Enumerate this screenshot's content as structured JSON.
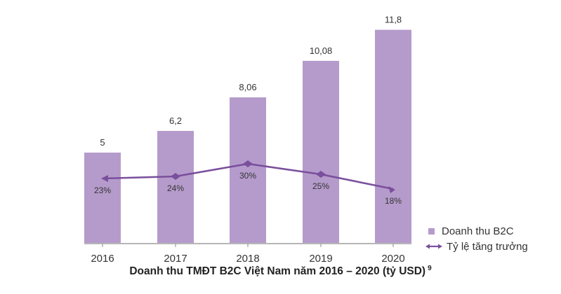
{
  "chart_data": {
    "type": "bar",
    "title": "Doanh thu TMĐT B2C Việt Nam năm 2016 – 2020 (tỷ USD)",
    "title_footnote": "9",
    "categories": [
      "2016",
      "2017",
      "2018",
      "2019",
      "2020"
    ],
    "series": [
      {
        "name": "Doanh thu B2C",
        "type": "bar",
        "values": [
          5,
          6.2,
          8.06,
          10.08,
          11.8
        ],
        "value_labels": [
          "5",
          "6,2",
          "8,06",
          "10,08",
          "11,8"
        ]
      },
      {
        "name": "Tỷ lệ tăng trưởng",
        "type": "line",
        "values": [
          23,
          24,
          30,
          25,
          18
        ],
        "value_labels": [
          "23%",
          "24%",
          "30%",
          "25%",
          "18%"
        ]
      }
    ],
    "legend_position": "bottom-right",
    "grid": false
  },
  "colors": {
    "bar": "#b59bcb",
    "line": "#7a4f9c",
    "axis": "#8a8a8a",
    "text": "#333333"
  }
}
